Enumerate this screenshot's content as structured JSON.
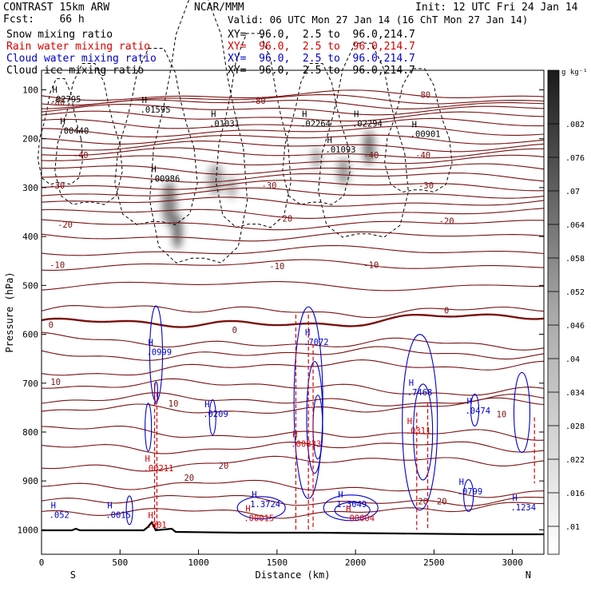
{
  "header": {
    "model": "CONTRAST 15km ARW",
    "forecast": "Fcst:    66 h",
    "org": "NCAR/MMM",
    "init": "Init: 12 UTC Fri 24 Jan 14",
    "valid": "Valid: 06 UTC Mon 27 Jan 14 (16 ChT Mon 27 Jan 14)",
    "fields": [
      {
        "name": "Snow mixing ratio",
        "xy": "XY=  96.0,  2.5 to  96.0,214.7",
        "color": "#000000"
      },
      {
        "name": "Rain water mixing ratio",
        "xy": "XY=  96.0,  2.5 to  96.0,214.7",
        "color": "#d40000"
      },
      {
        "name": "Cloud water mixing ratio",
        "xy": "XY=  96.0,  2.5 to  96.0,214.7",
        "color": "#0000cc"
      },
      {
        "name": "Cloud ice mixing ratio",
        "xy": "XY=  96.0,  2.5 to  96.0,214.7",
        "color": "#000000"
      }
    ]
  },
  "colorbar": {
    "unit": "g kg⁻¹",
    "ticks": [
      ".082",
      ".076",
      ".07",
      ".064",
      ".058",
      ".052",
      ".046",
      ".04",
      ".034",
      ".028",
      ".022",
      ".016",
      ".01"
    ]
  },
  "chart_data": {
    "type": "contour",
    "xlabel": "Distance (km)",
    "ylabel": "Pressure (hPa)",
    "xlim": [
      0,
      3200
    ],
    "ylim": [
      1050,
      60
    ],
    "x_ticks": [
      0,
      500,
      1000,
      1500,
      2000,
      2500,
      3000
    ],
    "y_ticks": [
      100,
      200,
      300,
      400,
      500,
      600,
      700,
      800,
      900,
      1000
    ],
    "end_labels": {
      "left": "S",
      "right": "N"
    },
    "temperature_contours": [
      {
        "label": "-80",
        "x": 100,
        "p": 125
      },
      {
        "label": "-80",
        "x": 1380,
        "p": 122
      },
      {
        "label": "-80",
        "x": 2430,
        "p": 110
      },
      {
        "label": "-40",
        "x": 250,
        "p": 233
      },
      {
        "label": "-40",
        "x": 2100,
        "p": 233
      },
      {
        "label": "-40",
        "x": 2430,
        "p": 233
      },
      {
        "label": "-30",
        "x": 100,
        "p": 295
      },
      {
        "label": "-30",
        "x": 1450,
        "p": 295
      },
      {
        "label": "-30",
        "x": 2450,
        "p": 295
      },
      {
        "label": "-20",
        "x": 150,
        "p": 375
      },
      {
        "label": "-20",
        "x": 1550,
        "p": 363
      },
      {
        "label": "-20",
        "x": 2580,
        "p": 368
      },
      {
        "label": "-10",
        "x": 100,
        "p": 458
      },
      {
        "label": "-10",
        "x": 1500,
        "p": 460
      },
      {
        "label": "-10",
        "x": 2100,
        "p": 458
      },
      {
        "label": "0",
        "x": 60,
        "p": 580
      },
      {
        "label": "0",
        "x": 1230,
        "p": 591
      },
      {
        "label": "0",
        "x": 2580,
        "p": 551
      },
      {
        "label": "10",
        "x": 90,
        "p": 697
      },
      {
        "label": "10",
        "x": 840,
        "p": 741
      },
      {
        "label": "10",
        "x": 2930,
        "p": 763
      },
      {
        "label": "20",
        "x": 940,
        "p": 893
      },
      {
        "label": "20",
        "x": 1160,
        "p": 869
      },
      {
        "label": "20",
        "x": 2430,
        "p": 941
      },
      {
        "label": "20",
        "x": 2550,
        "p": 941
      }
    ],
    "maxima": [
      {
        "field": "snow",
        "label": ".02795",
        "x": 130,
        "p": 122
      },
      {
        "field": "snow",
        "label": ".01595",
        "x": 700,
        "p": 143
      },
      {
        "field": "snow",
        "label": ".00440",
        "x": 180,
        "p": 187
      },
      {
        "field": "snow",
        "label": ".01031",
        "x": 1140,
        "p": 172
      },
      {
        "field": "snow",
        "label": ".02264",
        "x": 1720,
        "p": 172
      },
      {
        "field": "snow",
        "label": ".02294",
        "x": 2050,
        "p": 172
      },
      {
        "field": "snow",
        "label": ".01093",
        "x": 1880,
        "p": 225
      },
      {
        "field": "snow",
        "label": ".00901",
        "x": 2420,
        "p": 193
      },
      {
        "field": "snow",
        "label": ".00986",
        "x": 760,
        "p": 285
      },
      {
        "field": "cloud_water",
        "label": ".0999",
        "x": 740,
        "p": 639
      },
      {
        "field": "cloud_water",
        "label": ".0209",
        "x": 1100,
        "p": 766
      },
      {
        "field": "cloud_water",
        "label": ".0474",
        "x": 2770,
        "p": 759
      },
      {
        "field": "cloud_water",
        "label": ".7072",
        "x": 1740,
        "p": 619
      },
      {
        "field": "cloud_water",
        "label": ".7468",
        "x": 2400,
        "p": 722
      },
      {
        "field": "cloud_water",
        "label": ".0799",
        "x": 2720,
        "p": 924
      },
      {
        "field": "cloud_water",
        "label": "1.3724",
        "x": 1400,
        "p": 950
      },
      {
        "field": "cloud_water",
        "label": "1.3049",
        "x": 1950,
        "p": 950
      },
      {
        "field": "cloud_water",
        "label": ".1234",
        "x": 3060,
        "p": 957
      },
      {
        "field": "cloud_water",
        "label": ".052",
        "x": 120,
        "p": 972
      },
      {
        "field": "cloud_water",
        "label": ".0015",
        "x": 480,
        "p": 972
      },
      {
        "field": "rain",
        "label": ".00211",
        "x": 720,
        "p": 877
      },
      {
        "field": "rain",
        "label": ".00833",
        "x": 1660,
        "p": 827
      },
      {
        "field": "rain",
        "label": ".0311",
        "x": 2390,
        "p": 800
      },
      {
        "field": "rain",
        "label": ".00015",
        "x": 1360,
        "p": 979
      },
      {
        "field": "rain",
        "label": ".00004",
        "x": 2000,
        "p": 979
      },
      {
        "field": "rain",
        "label": ".001",
        "x": 740,
        "p": 993
      }
    ]
  }
}
